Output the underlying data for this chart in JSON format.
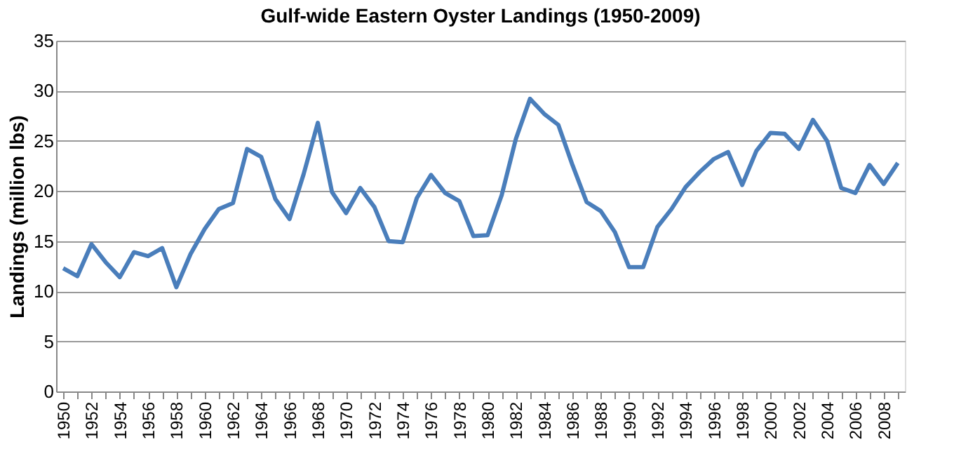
{
  "chart_data": {
    "type": "line",
    "title": "Gulf-wide Eastern Oyster Landings (1950-2009)",
    "ylabel": "Landings (million lbs)",
    "categories": [
      "1950",
      null,
      "1952",
      null,
      "1954",
      null,
      "1956",
      null,
      "1958",
      null,
      "1960",
      null,
      "1962",
      null,
      "1964",
      null,
      "1966",
      null,
      "1968",
      null,
      "1970",
      null,
      "1972",
      null,
      "1974",
      null,
      "1976",
      null,
      "1978",
      null,
      "1980",
      null,
      "1982",
      null,
      "1984",
      null,
      "1986",
      null,
      "1988",
      null,
      "1990",
      null,
      "1992",
      null,
      "1994",
      null,
      "1996",
      null,
      "1998",
      null,
      "2000",
      null,
      "2002",
      null,
      "2004",
      null,
      "2006",
      null,
      "2008",
      null
    ],
    "series": [
      {
        "color": "#4a7ebb",
        "values": [
          12.3,
          11.5,
          14.7,
          12.9,
          11.4,
          13.9,
          13.5,
          14.3,
          10.4,
          13.7,
          16.2,
          18.2,
          18.8,
          24.2,
          23.4,
          19.2,
          17.2,
          21.7,
          26.8,
          19.9,
          17.8,
          20.3,
          18.4,
          15.0,
          14.9,
          19.3,
          21.6,
          19.8,
          19.0,
          15.5,
          15.6,
          19.6,
          25.2,
          29.2,
          27.7,
          26.6,
          22.6,
          18.9,
          18.0,
          15.9,
          12.4,
          12.4,
          16.4,
          18.2,
          20.4,
          21.9,
          23.2,
          23.9,
          20.6,
          24.0,
          25.8,
          25.7,
          24.2,
          27.1,
          25.0,
          20.3,
          19.8,
          22.6,
          20.7,
          22.8
        ]
      }
    ],
    "ylim": [
      0,
      35
    ],
    "yticks": [
      0,
      5,
      10,
      15,
      20,
      25,
      30,
      35
    ],
    "grid": "y",
    "marker": "none",
    "line_style": "solid"
  }
}
